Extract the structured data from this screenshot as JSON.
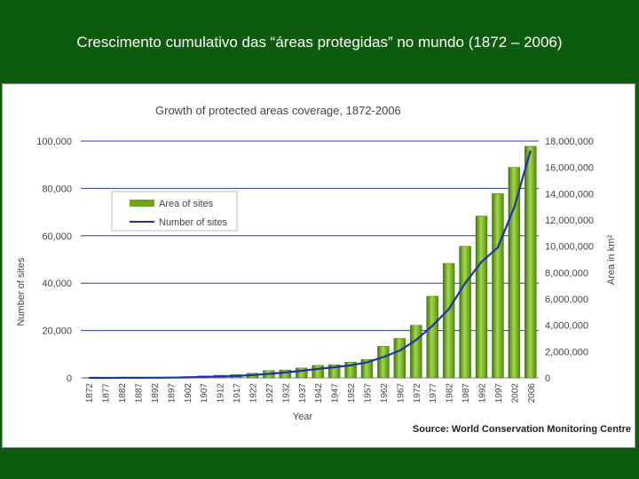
{
  "slide": {
    "title": "Crescimento cumulativo das “áreas protegidas” no mundo (1872 – 2006)"
  },
  "colors": {
    "background": "#0d5c0d",
    "bar": "#6aa618",
    "line": "#1c33a8",
    "grid": "#2a3c9a"
  },
  "chart_data": {
    "type": "bar",
    "title": "Growth of protected areas coverage, 1872-2006",
    "xlabel": "Year",
    "ylabel_left": "Number of sites",
    "ylabel_right": "Area in km²",
    "ylim_left": [
      0,
      100000
    ],
    "ylim_right": [
      0,
      18000000
    ],
    "yticks_left": [
      "0",
      "20,000",
      "40,000",
      "60,000",
      "80,000",
      "100,000"
    ],
    "yticks_right": [
      "0",
      "2,000,000",
      "4,000,000",
      "6,000,000",
      "8,000,000",
      "10,000,000",
      "12,000,000",
      "14,000,000",
      "16,000,000",
      "18,000,000"
    ],
    "grid": true,
    "legend_position": "top-left",
    "source": "Source: World Conservation Monitoring Centre",
    "categories": [
      "1872",
      "1877",
      "1882",
      "1887",
      "1892",
      "1897",
      "1902",
      "1907",
      "1912",
      "1917",
      "1922",
      "1927",
      "1932",
      "1937",
      "1942",
      "1947",
      "1952",
      "1957",
      "1962",
      "1967",
      "1972",
      "1977",
      "1982",
      "1987",
      "1992",
      "1997",
      "2002",
      "2006"
    ],
    "series": [
      {
        "name": "Area of sites",
        "axis": "right",
        "kind": "bar",
        "values": [
          10000,
          10000,
          20000,
          30000,
          40000,
          60000,
          100000,
          150000,
          200000,
          250000,
          350000,
          550000,
          600000,
          750000,
          950000,
          1000000,
          1200000,
          1400000,
          2400000,
          3000000,
          4000000,
          6200000,
          8700000,
          10000000,
          12300000,
          14000000,
          16000000,
          17600000
        ]
      },
      {
        "name": "Number of sites",
        "axis": "left",
        "kind": "line",
        "values": [
          5,
          10,
          20,
          40,
          60,
          100,
          200,
          400,
          600,
          800,
          1200,
          1700,
          2300,
          3000,
          3800,
          4500,
          5300,
          6500,
          8800,
          11500,
          16000,
          22000,
          29000,
          40000,
          49000,
          55000,
          72000,
          96000
        ]
      }
    ]
  }
}
